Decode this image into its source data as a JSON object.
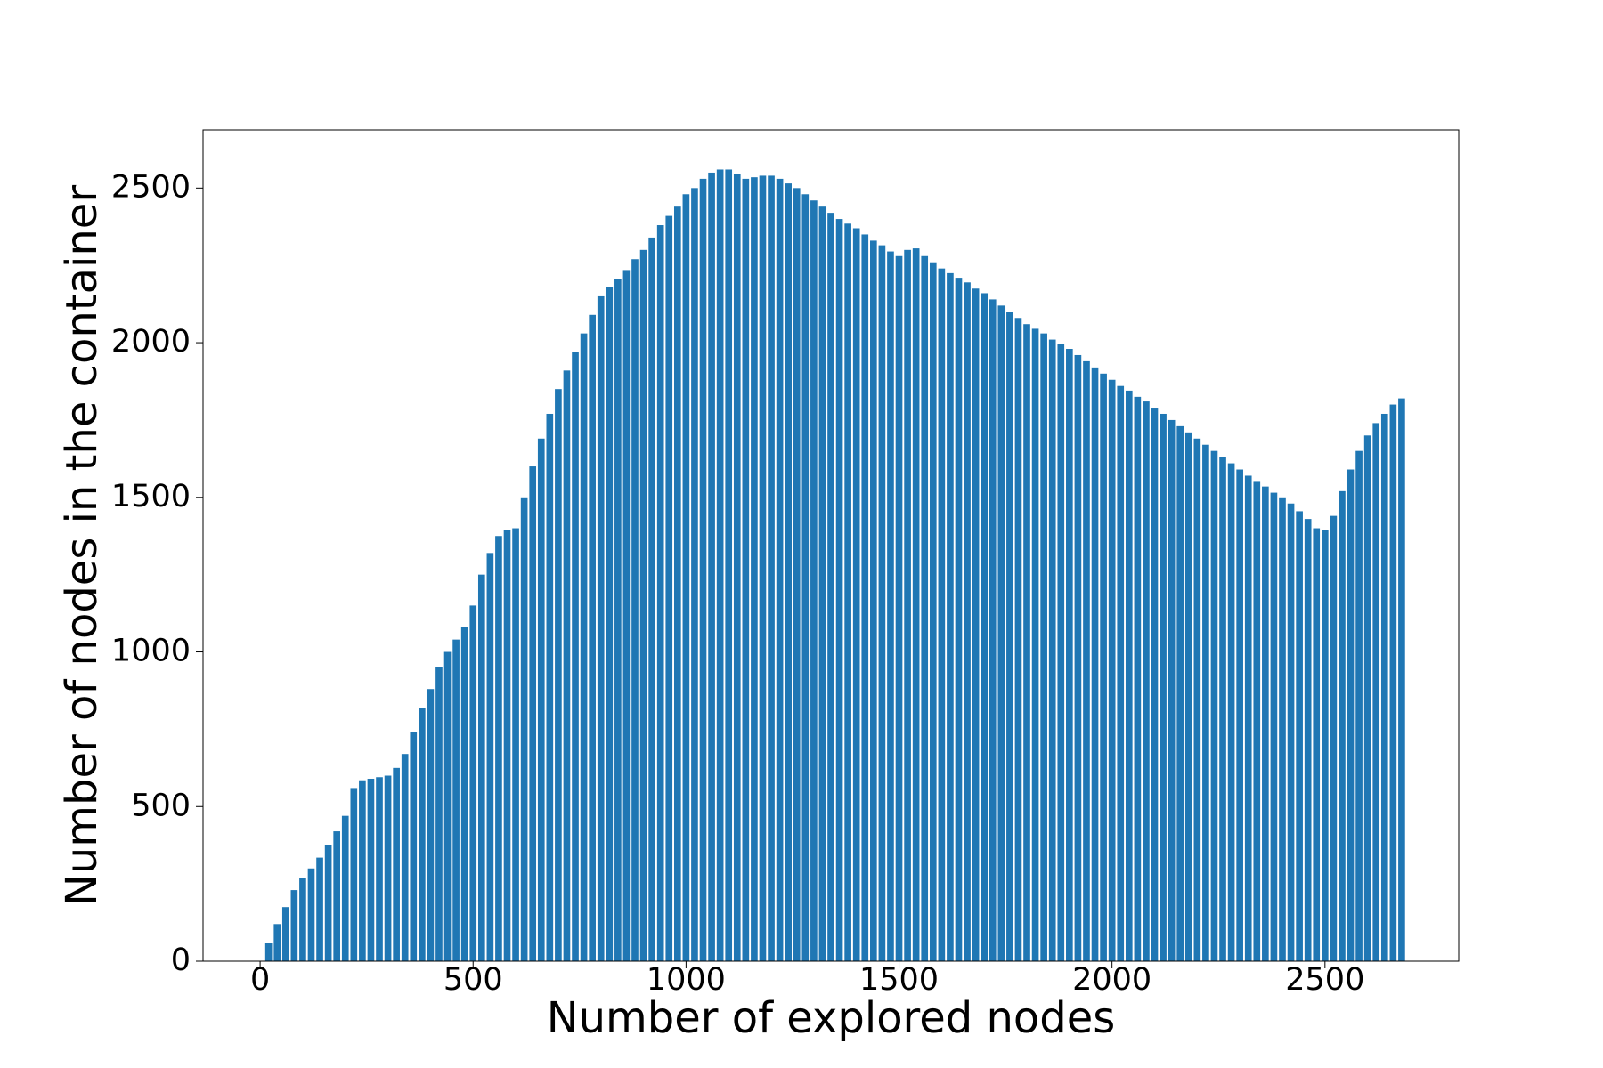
{
  "chart_data": {
    "type": "bar",
    "x_label": "Number of explored nodes",
    "y_label": "Number of nodes in the container",
    "x": [
      0,
      20,
      40,
      60,
      80,
      100,
      120,
      140,
      160,
      180,
      200,
      220,
      240,
      260,
      280,
      300,
      320,
      340,
      360,
      380,
      400,
      420,
      440,
      460,
      480,
      500,
      520,
      540,
      560,
      580,
      600,
      620,
      640,
      660,
      680,
      700,
      720,
      740,
      760,
      780,
      800,
      820,
      840,
      860,
      880,
      900,
      920,
      940,
      960,
      980,
      1000,
      1020,
      1040,
      1060,
      1080,
      1100,
      1120,
      1140,
      1160,
      1180,
      1200,
      1220,
      1240,
      1260,
      1280,
      1300,
      1320,
      1340,
      1360,
      1380,
      1400,
      1420,
      1440,
      1460,
      1480,
      1500,
      1520,
      1540,
      1560,
      1580,
      1600,
      1620,
      1640,
      1660,
      1680,
      1700,
      1720,
      1740,
      1760,
      1780,
      1800,
      1820,
      1840,
      1860,
      1880,
      1900,
      1920,
      1940,
      1960,
      1980,
      2000,
      2020,
      2040,
      2060,
      2080,
      2100,
      2120,
      2140,
      2160,
      2180,
      2200,
      2220,
      2240,
      2260,
      2280,
      2300,
      2320,
      2340,
      2360,
      2380,
      2400,
      2420,
      2440,
      2460,
      2480,
      2500,
      2520,
      2540,
      2560,
      2580,
      2600,
      2620,
      2640,
      2660,
      2680
    ],
    "values": [
      0,
      60,
      120,
      175,
      230,
      270,
      300,
      335,
      375,
      420,
      470,
      560,
      585,
      590,
      595,
      600,
      625,
      670,
      740,
      820,
      880,
      950,
      1000,
      1040,
      1080,
      1150,
      1250,
      1320,
      1375,
      1395,
      1400,
      1500,
      1600,
      1690,
      1770,
      1850,
      1910,
      1970,
      2030,
      2090,
      2150,
      2180,
      2205,
      2235,
      2270,
      2300,
      2340,
      2380,
      2410,
      2440,
      2480,
      2500,
      2530,
      2550,
      2560,
      2560,
      2545,
      2530,
      2535,
      2540,
      2540,
      2530,
      2515,
      2500,
      2480,
      2460,
      2440,
      2420,
      2400,
      2385,
      2370,
      2350,
      2330,
      2315,
      2295,
      2280,
      2300,
      2305,
      2280,
      2260,
      2240,
      2225,
      2210,
      2195,
      2175,
      2160,
      2140,
      2120,
      2100,
      2080,
      2060,
      2045,
      2030,
      2010,
      1995,
      1980,
      1960,
      1940,
      1920,
      1900,
      1880,
      1860,
      1845,
      1825,
      1810,
      1790,
      1770,
      1750,
      1730,
      1710,
      1690,
      1670,
      1650,
      1630,
      1610,
      1590,
      1570,
      1550,
      1535,
      1515,
      1500,
      1480,
      1455,
      1430,
      1400,
      1395,
      1440,
      1520,
      1590,
      1650,
      1700,
      1740,
      1770,
      1800,
      1820
    ],
    "color": "#1f77b4",
    "xlim": [
      -134,
      2814
    ],
    "xticks": [
      0,
      500,
      1000,
      1500,
      2000,
      2500
    ],
    "ylim": [
      0,
      2688
    ],
    "yticks": [
      0,
      500,
      1000,
      1500,
      2000,
      2500
    ],
    "grid": false
  }
}
